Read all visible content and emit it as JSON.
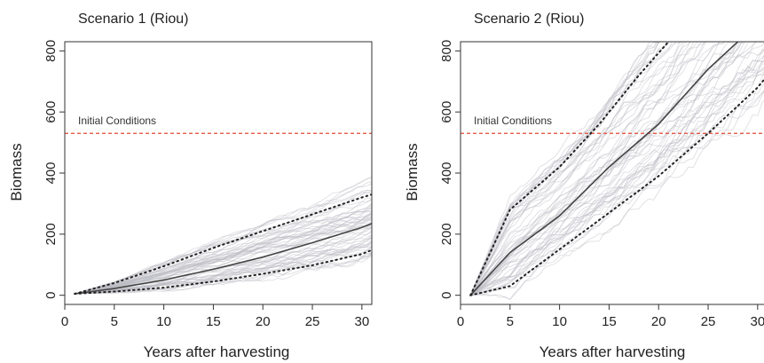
{
  "chart_data": [
    {
      "type": "line",
      "title": "Scenario 1 (Riou)",
      "xlabel": "Years after harvesting",
      "ylabel": "Biomass",
      "xlim": [
        0,
        31
      ],
      "ylim": [
        -30,
        830
      ],
      "xticks": [
        0,
        5,
        10,
        15,
        20,
        25,
        30
      ],
      "yticks": [
        0,
        200,
        400,
        600,
        800
      ],
      "grid": false,
      "annotation": {
        "text": "Initial Conditions",
        "y": 530,
        "color": "#e34a33"
      },
      "series": [
        {
          "role": "mean",
          "color": "#444444",
          "x": [
            1,
            5,
            10,
            15,
            20,
            25,
            30,
            31
          ],
          "y": [
            5,
            22,
            50,
            85,
            125,
            172,
            222,
            235
          ]
        },
        {
          "role": "upper-bound",
          "color": "#222222",
          "x": [
            1,
            5,
            10,
            15,
            20,
            25,
            30,
            31
          ],
          "y": [
            5,
            40,
            95,
            155,
            210,
            265,
            320,
            330
          ]
        },
        {
          "role": "lower-bound",
          "color": "#222222",
          "x": [
            1,
            5,
            10,
            15,
            20,
            25,
            30,
            31
          ],
          "y": [
            5,
            12,
            25,
            45,
            70,
            98,
            135,
            148
          ]
        }
      ],
      "simulations": {
        "count": 60,
        "color": "#b8b8c2",
        "opacity": 0.45,
        "seed": 11
      }
    },
    {
      "type": "line",
      "title": "Scenario 2 (Riou)",
      "xlabel": "Years after harvesting",
      "ylabel": "Biomass",
      "xlim": [
        0,
        31
      ],
      "ylim": [
        -30,
        830
      ],
      "xticks": [
        0,
        5,
        10,
        15,
        20,
        25,
        30
      ],
      "yticks": [
        0,
        200,
        400,
        600,
        800
      ],
      "grid": false,
      "annotation": {
        "text": "Initial Conditions",
        "y": 530,
        "color": "#e34a33"
      },
      "series": [
        {
          "role": "mean",
          "color": "#444444",
          "x": [
            1,
            5,
            10,
            15,
            20,
            25,
            28
          ],
          "y": [
            0,
            140,
            260,
            420,
            560,
            740,
            830
          ]
        },
        {
          "role": "upper-bound",
          "color": "#222222",
          "x": [
            1,
            5,
            10,
            14,
            18,
            21
          ],
          "y": [
            0,
            280,
            420,
            560,
            720,
            830
          ]
        },
        {
          "role": "lower-bound",
          "color": "#222222",
          "x": [
            1,
            5,
            10,
            15,
            20,
            25,
            30,
            31
          ],
          "y": [
            0,
            30,
            150,
            270,
            390,
            530,
            680,
            720
          ]
        }
      ],
      "simulations": {
        "count": 60,
        "color": "#b8b8c2",
        "opacity": 0.45,
        "seed": 29
      }
    }
  ]
}
